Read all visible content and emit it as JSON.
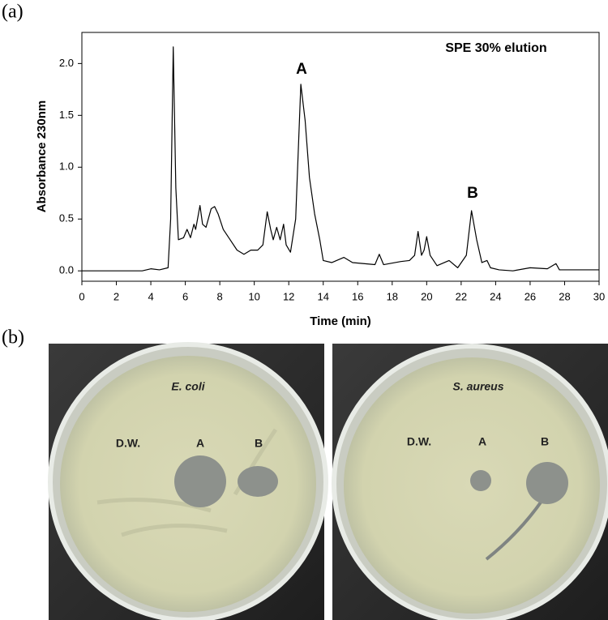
{
  "chart_data": {
    "type": "line",
    "panel_label": "(a)",
    "annotations": [
      "SPE 30%  elution",
      "A",
      "B"
    ],
    "x_label": "Time (min)",
    "y_label": "Absorbance  230nm",
    "color": "#000000",
    "x": [
      0,
      3.5,
      4.0,
      4.5,
      5.0,
      5.15,
      5.3,
      5.45,
      5.6,
      5.9,
      6.1,
      6.3,
      6.5,
      6.6,
      6.85,
      7.0,
      7.2,
      7.5,
      7.7,
      7.9,
      8.2,
      8.6,
      9.0,
      9.4,
      9.8,
      10.2,
      10.5,
      10.75,
      10.95,
      11.1,
      11.3,
      11.5,
      11.7,
      11.85,
      12.1,
      12.4,
      12.7,
      12.95,
      13.2,
      13.5,
      13.8,
      14.0,
      14.5,
      15.2,
      15.7,
      17.0,
      17.25,
      17.5,
      18.5,
      19.0,
      19.3,
      19.5,
      19.7,
      19.85,
      20.0,
      20.2,
      20.6,
      21.3,
      21.8,
      22.3,
      22.6,
      22.9,
      23.2,
      23.5,
      23.7,
      24.2,
      25.0,
      26.0,
      27.0,
      27.5,
      27.7,
      30.0
    ],
    "values": [
      0.0,
      0.0,
      0.02,
      0.01,
      0.03,
      0.5,
      2.16,
      0.8,
      0.3,
      0.32,
      0.4,
      0.32,
      0.45,
      0.4,
      0.63,
      0.45,
      0.42,
      0.6,
      0.62,
      0.55,
      0.4,
      0.3,
      0.2,
      0.16,
      0.2,
      0.2,
      0.25,
      0.57,
      0.4,
      0.3,
      0.42,
      0.3,
      0.45,
      0.25,
      0.18,
      0.5,
      1.8,
      1.45,
      0.9,
      0.55,
      0.3,
      0.1,
      0.08,
      0.13,
      0.08,
      0.06,
      0.16,
      0.06,
      0.09,
      0.1,
      0.15,
      0.38,
      0.15,
      0.2,
      0.33,
      0.15,
      0.05,
      0.1,
      0.03,
      0.15,
      0.58,
      0.3,
      0.08,
      0.1,
      0.03,
      0.01,
      0.0,
      0.03,
      0.02,
      0.07,
      0.01,
      0.01
    ],
    "xlim": [
      0,
      30
    ],
    "ylim": [
      -0.1,
      2.3
    ],
    "xticks": [
      0,
      2,
      4,
      6,
      8,
      10,
      12,
      14,
      16,
      18,
      20,
      22,
      24,
      26,
      28,
      30
    ],
    "yticks": [
      {
        "value": 0,
        "label": "0.0"
      },
      {
        "value": 0.5,
        "label": "0.5"
      },
      {
        "value": 1,
        "label": "1.0"
      },
      {
        "value": 1.5,
        "label": "1.5"
      },
      {
        "value": 2,
        "label": "2.0"
      }
    ]
  },
  "panel_b": {
    "label": "(b)",
    "plates": [
      {
        "title": "E. coli",
        "labels": [
          "D.W.",
          "A",
          "B"
        ]
      },
      {
        "title": "S. aureus",
        "labels": [
          "D.W.",
          "A",
          "B"
        ]
      }
    ]
  }
}
